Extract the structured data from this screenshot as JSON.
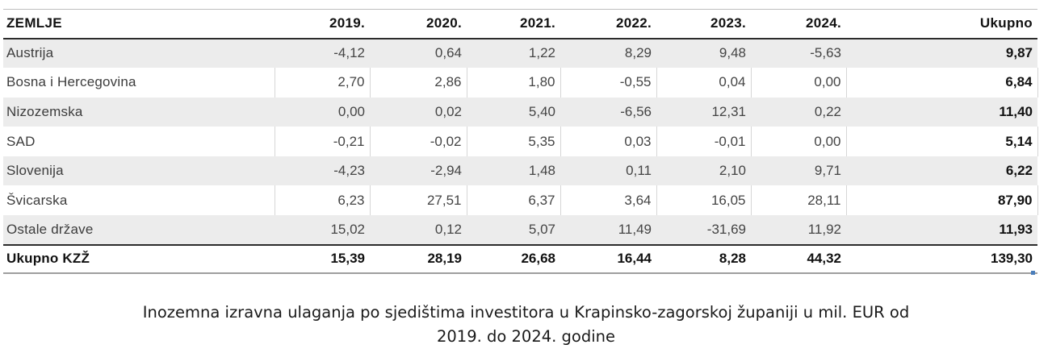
{
  "table": {
    "header": [
      "ZEMLJE",
      "2019.",
      "2020.",
      "2021.",
      "2022.",
      "2023.",
      "2024.",
      "Ukupno"
    ],
    "rows": [
      {
        "country": "Austrija",
        "values": [
          "-4,12",
          "0,64",
          "1,22",
          "8,29",
          "9,48",
          "-5,63"
        ],
        "total": "9,87"
      },
      {
        "country": "Bosna i Hercegovina",
        "values": [
          "2,70",
          "2,86",
          "1,80",
          "-0,55",
          "0,04",
          "0,00"
        ],
        "total": "6,84"
      },
      {
        "country": "Nizozemska",
        "values": [
          "0,00",
          "0,02",
          "5,40",
          "-6,56",
          "12,31",
          "0,22"
        ],
        "total": "11,40"
      },
      {
        "country": "SAD",
        "values": [
          "-0,21",
          "-0,02",
          "5,35",
          "0,03",
          "-0,01",
          "0,00"
        ],
        "total": "5,14"
      },
      {
        "country": "Slovenija",
        "values": [
          "-4,23",
          "-2,94",
          "1,48",
          "0,11",
          "2,10",
          "9,71"
        ],
        "total": "6,22"
      },
      {
        "country": "Švicarska",
        "values": [
          "6,23",
          "27,51",
          "6,37",
          "3,64",
          "16,05",
          "28,11"
        ],
        "total": "87,90"
      },
      {
        "country": "Ostale države",
        "values": [
          "15,02",
          "0,12",
          "5,07",
          "11,49",
          "-31,69",
          "11,92"
        ],
        "total": "11,93"
      }
    ],
    "footer": {
      "country": "Ukupno KZŽ",
      "values": [
        "15,39",
        "28,19",
        "26,68",
        "16,44",
        "8,28",
        "44,32"
      ],
      "total": "139,30"
    }
  },
  "caption": {
    "line1": "Inozemna izravna ulaganja po sjedištima investitora u  Krapinsko-zagorskoj županiji u mil. EUR od",
    "line2": "2019. do 2024. godine"
  }
}
